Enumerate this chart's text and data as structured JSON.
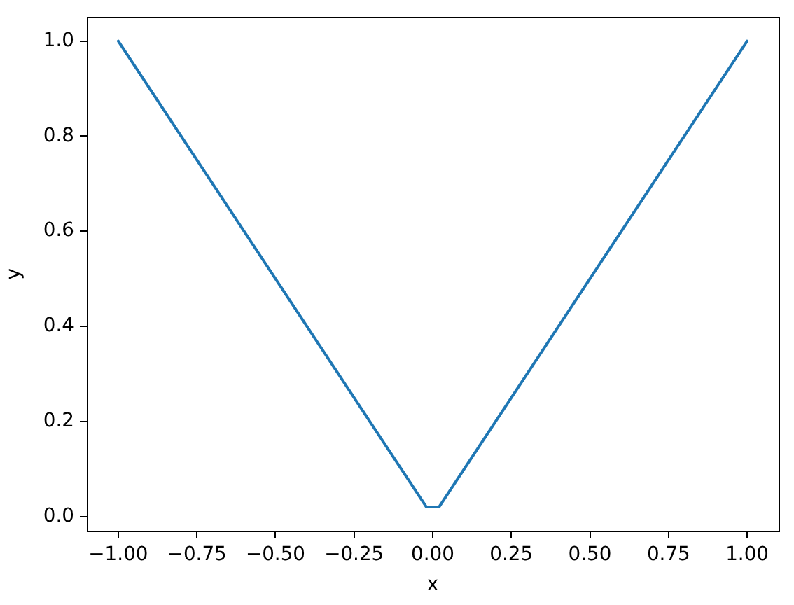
{
  "chart_data": {
    "type": "line",
    "xlabel": "x",
    "ylabel": "y",
    "x": [
      -1,
      -0.02,
      0.02,
      1
    ],
    "series": [
      {
        "color": "#1f77b4",
        "values": [
          1,
          0.02,
          0.02,
          1
        ]
      }
    ],
    "xlim": [
      -1.1,
      1.1
    ],
    "xticks": [
      {
        "value": -1,
        "label": "−1.00"
      },
      {
        "value": -0.75,
        "label": "−0.75"
      },
      {
        "value": -0.5,
        "label": "−0.50"
      },
      {
        "value": -0.25,
        "label": "−0.25"
      },
      {
        "value": 0,
        "label": "0.00"
      },
      {
        "value": 0.25,
        "label": "0.25"
      },
      {
        "value": 0.5,
        "label": "0.50"
      },
      {
        "value": 0.75,
        "label": "0.75"
      },
      {
        "value": 1,
        "label": "1.00"
      }
    ],
    "ylim": [
      -0.03,
      1.05
    ],
    "yticks": [
      {
        "value": 0,
        "label": "0.0"
      },
      {
        "value": 0.2,
        "label": "0.2"
      },
      {
        "value": 0.4,
        "label": "0.4"
      },
      {
        "value": 0.6,
        "label": "0.6"
      },
      {
        "value": 0.8,
        "label": "0.8"
      },
      {
        "value": 1,
        "label": "1.0"
      }
    ],
    "grid": false,
    "legend": false
  }
}
